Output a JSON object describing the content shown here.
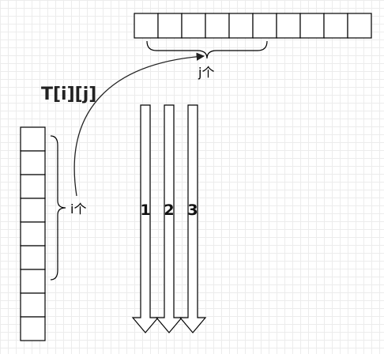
{
  "title": "T[i][j]",
  "row_label": "j个",
  "col_label": "i个",
  "row_array": {
    "cells": 10
  },
  "col_array": {
    "cells": 9
  },
  "arrows": [
    {
      "label": "1"
    },
    {
      "label": "2"
    },
    {
      "label": "3"
    }
  ]
}
